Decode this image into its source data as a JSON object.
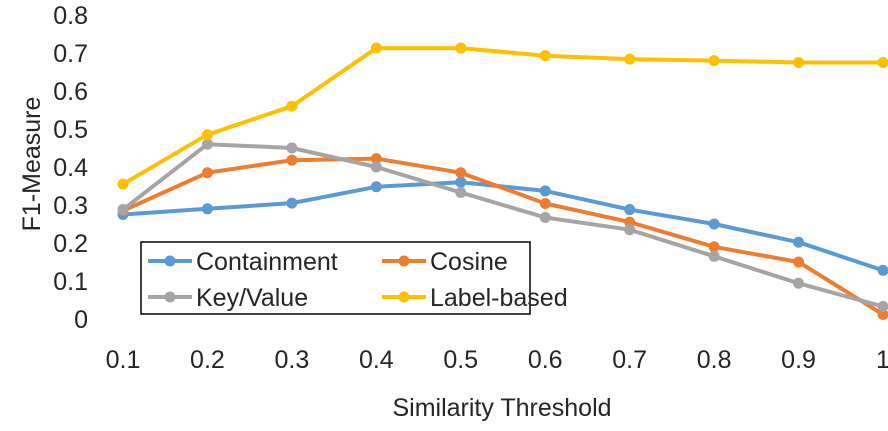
{
  "chart_data": {
    "type": "line",
    "title": "",
    "xlabel": "Similarity Threshold",
    "ylabel": "F1-Measure",
    "x": [
      0.1,
      0.2,
      0.3,
      0.4,
      0.5,
      0.6,
      0.7,
      0.8,
      0.9,
      1
    ],
    "x_tick_labels": [
      "0.1",
      "0.2",
      "0.3",
      "0.4",
      "0.5",
      "0.6",
      "0.7",
      "0.8",
      "0.9",
      "1"
    ],
    "y_tick_labels": [
      "0",
      "0.1",
      "0.2",
      "0.3",
      "0.4",
      "0.5",
      "0.6",
      "0.7",
      "0.8"
    ],
    "ylim": [
      0,
      0.8
    ],
    "grid": false,
    "legend_position": "bottom-left",
    "series": [
      {
        "name": "Containment",
        "color": "#5B9BD5",
        "values": [
          0.275,
          0.29,
          0.305,
          0.348,
          0.36,
          0.337,
          0.288,
          0.25,
          0.202,
          0.128
        ]
      },
      {
        "name": "Cosine",
        "color": "#ED7D31",
        "values": [
          0.285,
          0.385,
          0.418,
          0.422,
          0.385,
          0.304,
          0.255,
          0.19,
          0.15,
          0.012
        ]
      },
      {
        "name": "Key/Value",
        "color": "#A5A5A5",
        "values": [
          0.288,
          0.46,
          0.45,
          0.4,
          0.333,
          0.267,
          0.235,
          0.165,
          0.094,
          0.033
        ]
      },
      {
        "name": "Label-based",
        "color": "#FFC000",
        "values": [
          0.355,
          0.485,
          0.56,
          0.713,
          0.713,
          0.693,
          0.684,
          0.68,
          0.675,
          0.675
        ]
      }
    ]
  }
}
